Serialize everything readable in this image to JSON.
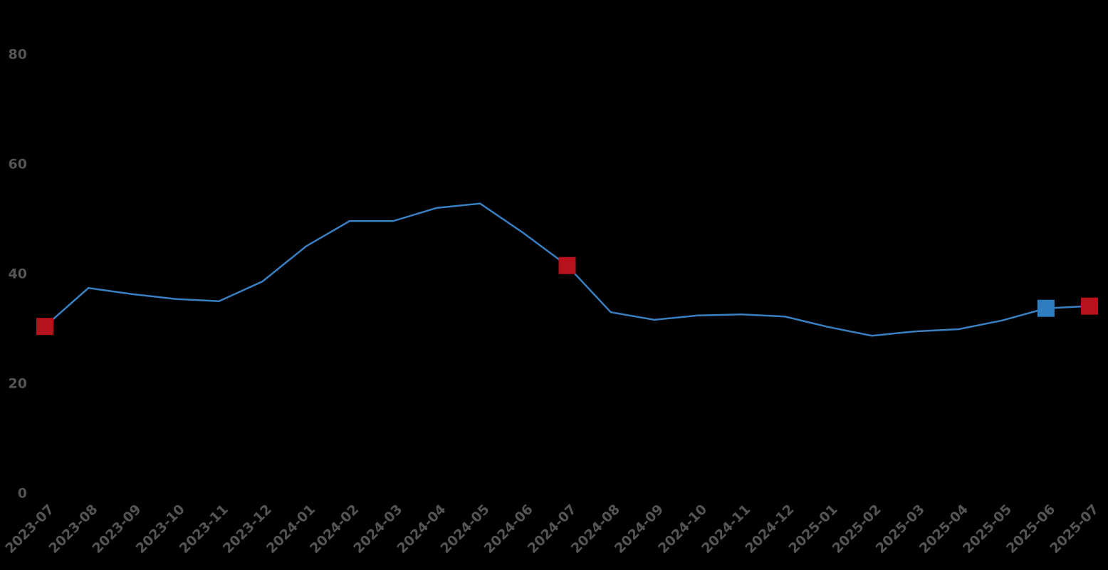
{
  "chart_data": {
    "type": "line",
    "categories": [
      "2023-07",
      "2023-08",
      "2023-09",
      "2023-10",
      "2023-11",
      "2023-12",
      "2024-01",
      "2024-02",
      "2024-03",
      "2024-04",
      "2024-05",
      "2024-06",
      "2024-07",
      "2024-08",
      "2024-09",
      "2024-10",
      "2024-11",
      "2024-12",
      "2025-01",
      "2025-02",
      "2025-03",
      "2025-04",
      "2025-05",
      "2025-06",
      "2025-07"
    ],
    "series": [
      {
        "color": "#3a7fc1",
        "values": [
          30.5,
          37.5,
          36.4,
          35.5,
          35.1,
          38.7,
          45.1,
          49.7,
          49.7,
          52.1,
          52.9,
          47.5,
          41.6,
          33.1,
          31.7,
          32.5,
          32.7,
          32.3,
          30.4,
          28.8,
          29.6,
          30.0,
          31.6,
          33.8,
          34.2
        ],
        "marker_colors": [
          "#b5121b",
          null,
          null,
          null,
          null,
          null,
          null,
          null,
          null,
          null,
          null,
          null,
          "#b5121b",
          null,
          null,
          null,
          null,
          null,
          null,
          null,
          null,
          null,
          null,
          "#2e7dc0",
          "#b5121b"
        ]
      }
    ],
    "ylim": [
      0,
      80
    ],
    "yticks": [
      0,
      20,
      40,
      60,
      80
    ],
    "grid": false
  }
}
